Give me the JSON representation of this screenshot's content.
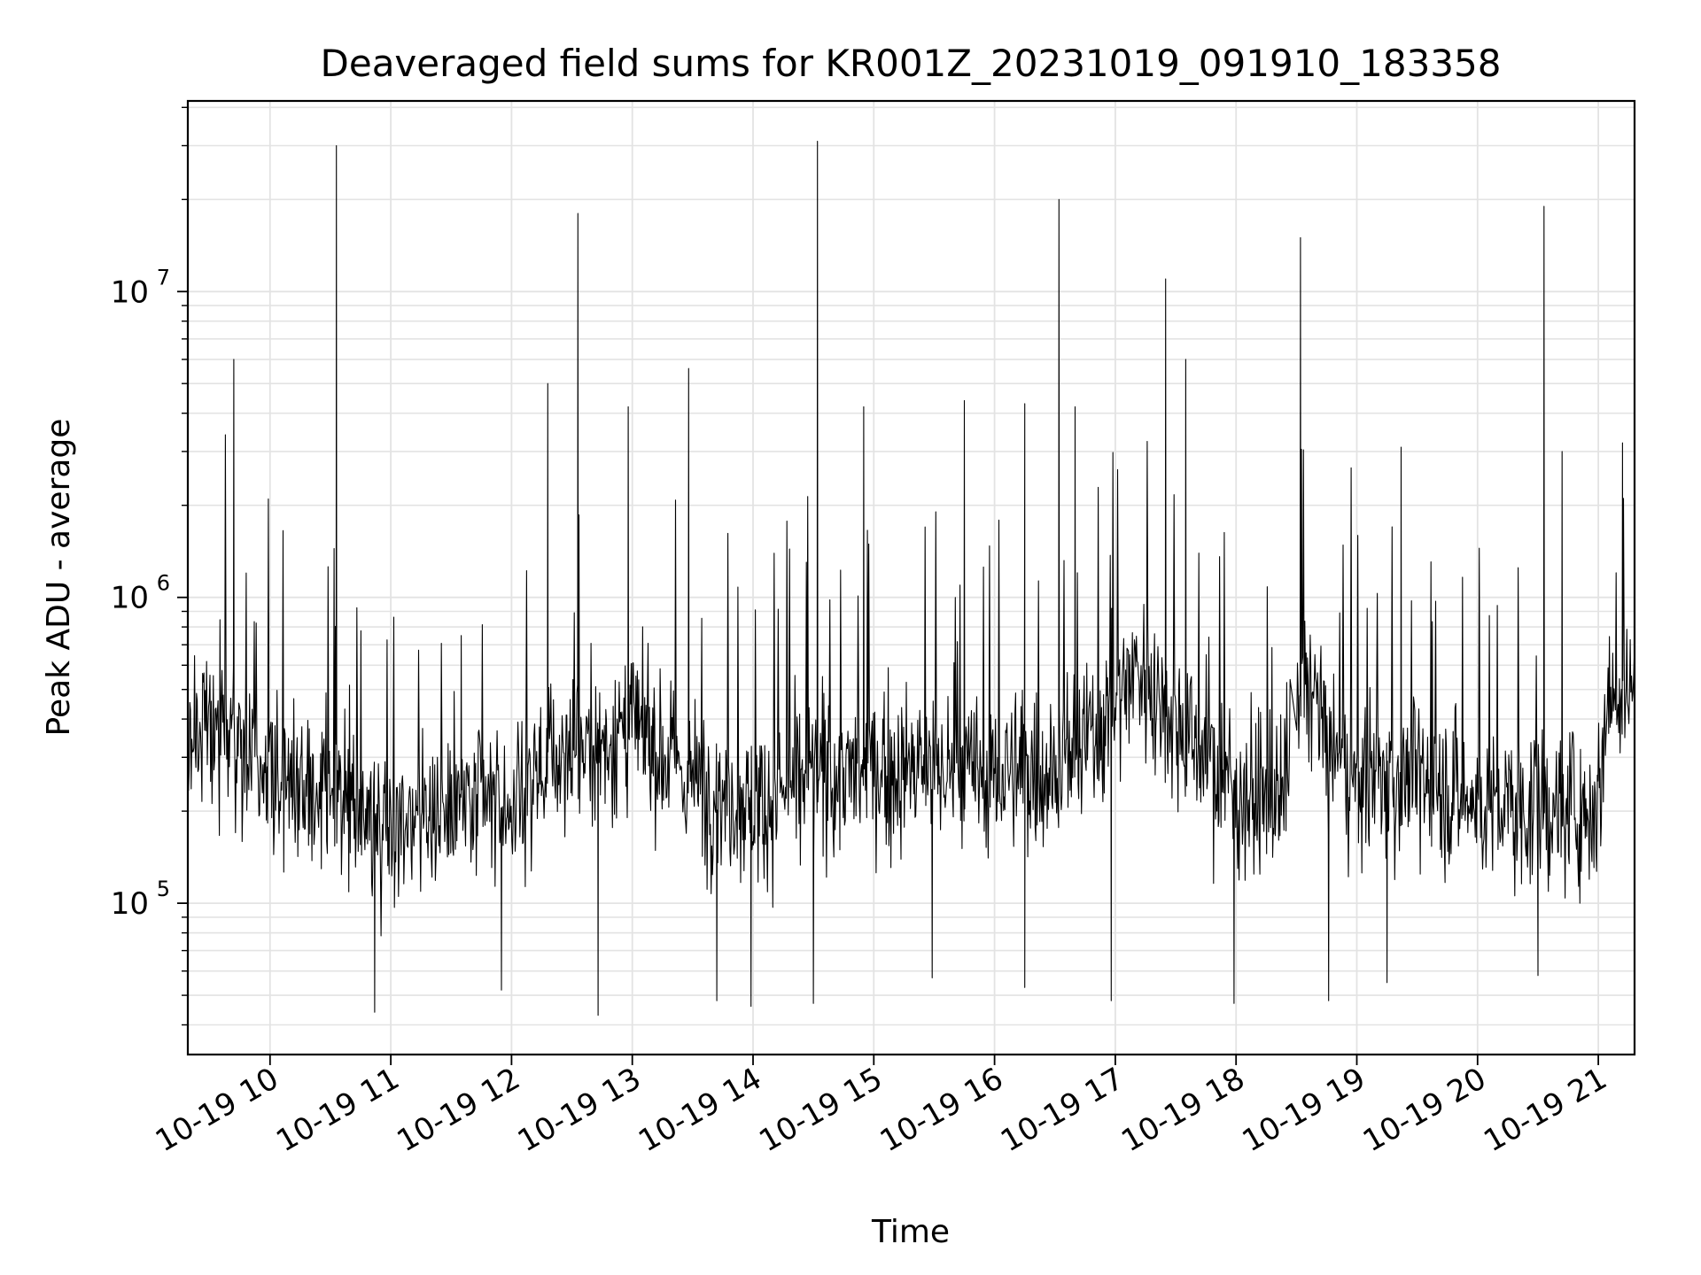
{
  "chart_data": {
    "type": "line",
    "title": "Deaveraged field sums for KR001Z_20231019_091910_183358",
    "xlabel": "Time",
    "ylabel": "Peak ADU - average",
    "y_scale": "log",
    "ylim": [
      32000,
      42000000
    ],
    "xlim": [
      "2023-10-19T09:19:10",
      "2023-10-19T21:18:00"
    ],
    "grid": true,
    "line_color": "#000000",
    "grid_color": "#e3e3e3",
    "x_ticks": [
      {
        "time": "2023-10-19T10:00",
        "label": "10-19 10"
      },
      {
        "time": "2023-10-19T11:00",
        "label": "10-19 11"
      },
      {
        "time": "2023-10-19T12:00",
        "label": "10-19 12"
      },
      {
        "time": "2023-10-19T13:00",
        "label": "10-19 13"
      },
      {
        "time": "2023-10-19T14:00",
        "label": "10-19 14"
      },
      {
        "time": "2023-10-19T15:00",
        "label": "10-19 15"
      },
      {
        "time": "2023-10-19T16:00",
        "label": "10-19 16"
      },
      {
        "time": "2023-10-19T17:00",
        "label": "10-19 17"
      },
      {
        "time": "2023-10-19T18:00",
        "label": "10-19 18"
      },
      {
        "time": "2023-10-19T19:00",
        "label": "10-19 19"
      },
      {
        "time": "2023-10-19T20:00",
        "label": "10-19 20"
      },
      {
        "time": "2023-10-19T21:00",
        "label": "10-19 21"
      }
    ],
    "y_ticks": [
      {
        "value": 100000,
        "base": "10",
        "exp": "5"
      },
      {
        "value": 1000000,
        "base": "10",
        "exp": "6"
      },
      {
        "value": 10000000,
        "base": "10",
        "exp": "7"
      }
    ],
    "series": [
      {
        "baseline": [
          [
            "2023-10-19T09:19",
            350000
          ],
          [
            "2023-10-19T09:40",
            380000
          ],
          [
            "2023-10-19T10:00",
            270000
          ],
          [
            "2023-10-19T10:30",
            200000
          ],
          [
            "2023-10-19T11:00",
            190000
          ],
          [
            "2023-10-19T11:30",
            200000
          ],
          [
            "2023-10-19T12:00",
            210000
          ],
          [
            "2023-10-19T12:20",
            300000
          ],
          [
            "2023-10-19T12:45",
            330000
          ],
          [
            "2023-10-19T13:00",
            380000
          ],
          [
            "2023-10-19T13:30",
            250000
          ],
          [
            "2023-10-19T14:00",
            210000
          ],
          [
            "2023-10-19T14:30",
            260000
          ],
          [
            "2023-10-19T15:00",
            270000
          ],
          [
            "2023-10-19T15:30",
            270000
          ],
          [
            "2023-10-19T16:00",
            260000
          ],
          [
            "2023-10-19T16:30",
            280000
          ],
          [
            "2023-10-19T16:50",
            350000
          ],
          [
            "2023-10-19T17:10",
            600000
          ],
          [
            "2023-10-19T17:30",
            400000
          ],
          [
            "2023-10-19T18:00",
            230000
          ],
          [
            "2023-10-19T18:25",
            210000
          ],
          [
            "2023-10-19T18:35",
            600000
          ],
          [
            "2023-10-19T18:45",
            320000
          ],
          [
            "2023-10-19T19:00",
            250000
          ],
          [
            "2023-10-19T19:30",
            260000
          ],
          [
            "2023-10-19T20:00",
            210000
          ],
          [
            "2023-10-19T20:30",
            200000
          ],
          [
            "2023-10-19T21:00",
            210000
          ],
          [
            "2023-10-19T21:05",
            500000
          ],
          [
            "2023-10-19T21:18",
            520000
          ]
        ],
        "peaks": [
          [
            "2023-10-19T09:42",
            6000000
          ],
          [
            "2023-10-19T10:33",
            30000000
          ],
          [
            "2023-10-19T11:35",
            750000
          ],
          [
            "2023-10-19T12:18",
            5000000
          ],
          [
            "2023-10-19T12:33",
            18000000
          ],
          [
            "2023-10-19T12:58",
            4200000
          ],
          [
            "2023-10-19T13:28",
            5600000
          ],
          [
            "2023-10-19T14:32",
            31000000
          ],
          [
            "2023-10-19T14:55",
            4200000
          ],
          [
            "2023-10-19T15:45",
            4400000
          ],
          [
            "2023-10-19T16:15",
            4300000
          ],
          [
            "2023-10-19T16:32",
            20000000
          ],
          [
            "2023-10-19T16:40",
            4200000
          ],
          [
            "2023-10-19T17:25",
            11000000
          ],
          [
            "2023-10-19T17:35",
            6000000
          ],
          [
            "2023-10-19T18:32",
            15000000
          ],
          [
            "2023-10-19T19:22",
            3100000
          ],
          [
            "2023-10-19T20:33",
            19000000
          ],
          [
            "2023-10-19T20:42",
            3000000
          ],
          [
            "2023-10-19T21:12",
            3200000
          ]
        ],
        "dips": [
          [
            "2023-10-19T10:52",
            44000
          ],
          [
            "2023-10-19T11:55",
            52000
          ],
          [
            "2023-10-19T12:43",
            43000
          ],
          [
            "2023-10-19T13:42",
            48000
          ],
          [
            "2023-10-19T13:59",
            46000
          ],
          [
            "2023-10-19T14:30",
            47000
          ],
          [
            "2023-10-19T15:29",
            57000
          ],
          [
            "2023-10-19T16:15",
            53000
          ],
          [
            "2023-10-19T16:58",
            48000
          ],
          [
            "2023-10-19T17:59",
            47000
          ],
          [
            "2023-10-19T18:46",
            48000
          ],
          [
            "2023-10-19T19:15",
            55000
          ],
          [
            "2023-10-19T20:30",
            58000
          ]
        ],
        "sampling_interval_seconds": 20
      }
    ]
  }
}
